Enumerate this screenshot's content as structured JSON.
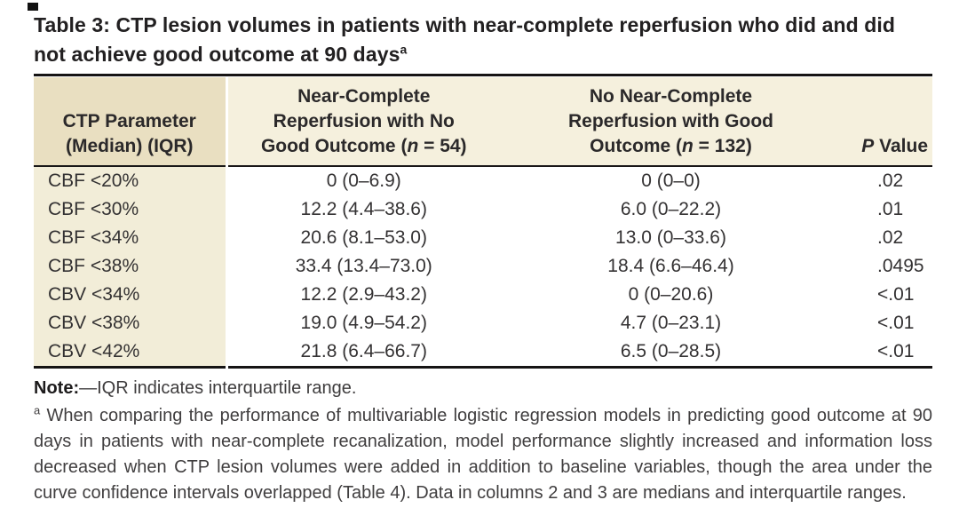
{
  "colors": {
    "rule": "#161414",
    "header_col1_bg": "#e9dfc1",
    "header_bg": "#f5f0dd",
    "body_col1_bg": "#f2edd8"
  },
  "title": {
    "line1": "Table 3: CTP lesion volumes in patients with near-complete reperfusion who did and did",
    "line2": "not achieve good outcome at 90 days",
    "sup": "a"
  },
  "table": {
    "header": {
      "col1": {
        "line1": "CTP Parameter",
        "line2": "(Median) (IQR)"
      },
      "col2": {
        "line1": "Near-Complete",
        "line2": "Reperfusion with No",
        "line3_pre": "Good Outcome (",
        "n": "n",
        "line3_post": " = 54)"
      },
      "col3": {
        "line1": "No Near-Complete",
        "line2": "Reperfusion with Good",
        "line3_pre": "Outcome (",
        "n": "n",
        "line3_post": " = 132)"
      },
      "col4": {
        "p": "P",
        "rest": " Value"
      }
    },
    "rows": [
      {
        "param": "CBF <20%",
        "no_good_outcome": "0 (0–6.9)",
        "good_outcome": "0 (0–0)",
        "p_value": ".02"
      },
      {
        "param": "CBF <30%",
        "no_good_outcome": "12.2 (4.4–38.6)",
        "good_outcome": "6.0 (0–22.2)",
        "p_value": ".01"
      },
      {
        "param": "CBF <34%",
        "no_good_outcome": "20.6 (8.1–53.0)",
        "good_outcome": "13.0 (0–33.6)",
        "p_value": ".02"
      },
      {
        "param": "CBF <38%",
        "no_good_outcome": "33.4 (13.4–73.0)",
        "good_outcome": "18.4 (6.6–46.4)",
        "p_value": ".0495"
      },
      {
        "param": "CBV <34%",
        "no_good_outcome": "12.2 (2.9–43.2)",
        "good_outcome": "0 (0–20.6)",
        "p_value": "<.01"
      },
      {
        "param": "CBV <38%",
        "no_good_outcome": "19.0 (4.9–54.2)",
        "good_outcome": "4.7 (0–23.1)",
        "p_value": "<.01"
      },
      {
        "param": "CBV <42%",
        "no_good_outcome": "21.8 (6.4–66.7)",
        "good_outcome": "6.5 (0–28.5)",
        "p_value": "<.01"
      }
    ]
  },
  "footnotes": {
    "note_label": "Note:",
    "note_text": "—IQR indicates interquartile range.",
    "a_sup": "a",
    "a_text": "When comparing the performance of multivariable logistic regression models in predicting good outcome at 90 days in patients with near-complete recanalization, model performance slightly increased and information loss decreased when CTP lesion volumes were added in addition to baseline variables, though the area under the curve confidence intervals overlapped (Table 4). Data in columns 2 and 3 are medians and interquartile ranges."
  }
}
